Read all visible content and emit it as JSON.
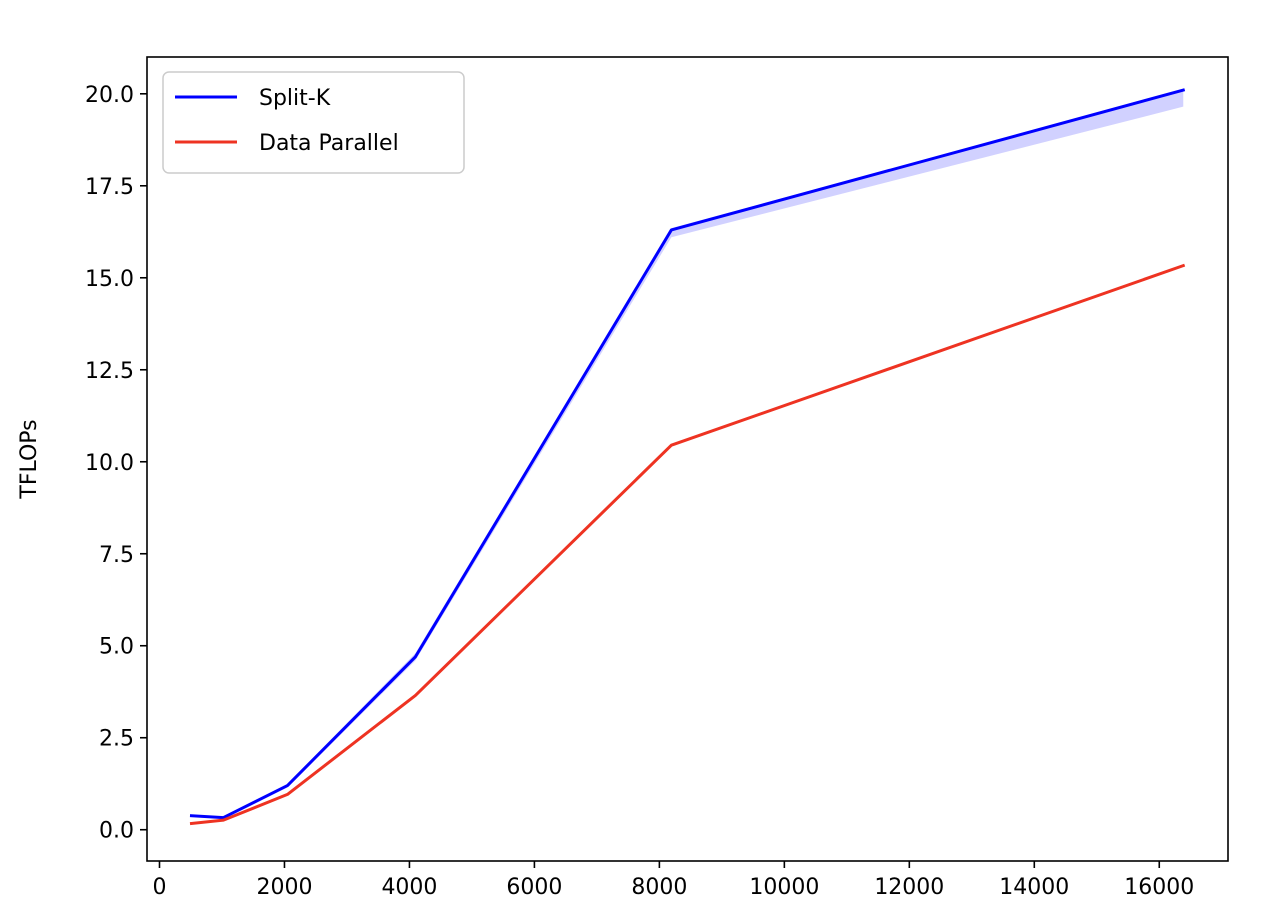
{
  "chart_data": {
    "type": "line",
    "title": "",
    "xlabel": "",
    "ylabel": "TFLOPs",
    "xlim": [
      -200,
      17100
    ],
    "ylim": [
      -0.85,
      21.0
    ],
    "xticks": [
      0,
      2000,
      4000,
      6000,
      8000,
      10000,
      12000,
      14000,
      16000
    ],
    "yticks": [
      0.0,
      2.5,
      5.0,
      7.5,
      10.0,
      12.5,
      15.0,
      17.5,
      20.0
    ],
    "xtick_labels": [
      "0",
      "2000",
      "4000",
      "6000",
      "8000",
      "10000",
      "12000",
      "14000",
      "16000"
    ],
    "ytick_labels": [
      "0.0",
      "2.5",
      "5.0",
      "7.5",
      "10.0",
      "12.5",
      "15.0",
      "17.5",
      "20.0"
    ],
    "grid": false,
    "legend": "top-left",
    "x": [
      512,
      1024,
      2048,
      4096,
      8192,
      16384
    ],
    "series": [
      {
        "name": "Split-K",
        "color": "#0000ff",
        "values": [
          0.38,
          0.33,
          1.2,
          4.7,
          16.3,
          20.1
        ],
        "band_lower": [
          0.36,
          0.31,
          1.15,
          4.6,
          16.1,
          19.65
        ],
        "band_upper": [
          0.4,
          0.35,
          1.25,
          4.8,
          16.35,
          20.1
        ],
        "band_color": "#0000ff"
      },
      {
        "name": "Data Parallel",
        "color": "#ee3322",
        "values": [
          0.17,
          0.26,
          0.96,
          3.65,
          10.45,
          15.33
        ]
      }
    ]
  }
}
